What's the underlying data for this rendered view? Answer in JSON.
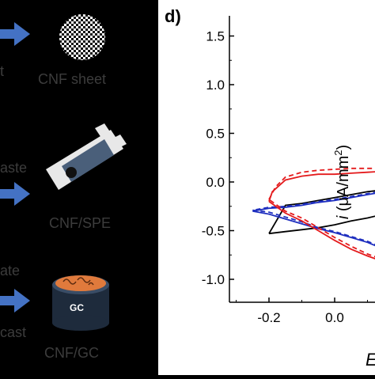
{
  "left_panel": {
    "row1": {
      "left_text": "t",
      "caption": "CNF sheet"
    },
    "row2": {
      "left_text": "aste",
      "caption": "CNF/SPE"
    },
    "row3": {
      "left_text_top": "ate",
      "left_text_bottom": "cast",
      "caption": "CNF/GC",
      "gc_label": "GC"
    },
    "colors": {
      "arrow": "#4472c4",
      "caption": "#3c3c3c",
      "electrode_body": "#4a5f7a",
      "gc_top": "#e07a3c"
    }
  },
  "chart_data": {
    "type": "line",
    "panel_label": "d)",
    "xlabel": "E",
    "ylabel": "i (μA/mm²)",
    "ylabel_parts": {
      "italic": "i",
      "open": "(",
      "mu": "μ",
      "unit": "A/mm",
      "sup": "2",
      "close": ")"
    },
    "xlim": [
      -0.3,
      0.3
    ],
    "ylim": [
      -1.2,
      1.8
    ],
    "x_ticks": [
      -0.2,
      0.0
    ],
    "x_tick_labels": [
      "-0.2",
      "0.0"
    ],
    "y_ticks": [
      -1.0,
      -0.5,
      0.0,
      0.5,
      1.0,
      1.5
    ],
    "y_tick_labels": [
      "-1.0",
      "-0.5",
      "0.0",
      "0.5",
      "1.0",
      "1.5"
    ],
    "series": [
      {
        "color": "#000000",
        "dash": "solid",
        "x": [
          -0.2,
          -0.15,
          -0.1,
          -0.05,
          0.0,
          0.05,
          0.1,
          0.15,
          0.2,
          0.22,
          0.3,
          0.22,
          0.2,
          0.15,
          0.1,
          0.05,
          0.0,
          -0.05,
          -0.1,
          -0.15,
          -0.2
        ],
        "y": [
          -0.53,
          -0.51,
          -0.49,
          -0.47,
          -0.44,
          -0.4,
          -0.37,
          -0.33,
          -0.27,
          -0.25,
          -0.23,
          -0.04,
          -0.05,
          -0.08,
          -0.1,
          -0.13,
          -0.16,
          -0.19,
          -0.22,
          -0.24,
          -0.53
        ]
      },
      {
        "color": "#1f2fbf",
        "dash": "solid",
        "x": [
          -0.25,
          -0.2,
          -0.15,
          -0.1,
          -0.05,
          0.0,
          0.05,
          0.1,
          0.15,
          0.2,
          0.25,
          0.3,
          0.25,
          0.2,
          0.15,
          0.1,
          0.05,
          0.0,
          -0.05,
          -0.1,
          -0.15,
          -0.2,
          -0.25
        ],
        "y": [
          -0.3,
          -0.33,
          -0.38,
          -0.43,
          -0.48,
          -0.52,
          -0.57,
          -0.62,
          -0.69,
          -0.78,
          -0.83,
          -0.87,
          -0.02,
          -0.06,
          -0.1,
          -0.13,
          -0.16,
          -0.19,
          -0.21,
          -0.24,
          -0.26,
          -0.27,
          -0.3
        ]
      },
      {
        "color": "#1f2fbf",
        "dash": "dashed",
        "x": [
          -0.25,
          -0.2,
          -0.15,
          -0.1,
          -0.05,
          0.0,
          0.05,
          0.1,
          0.15,
          0.2,
          0.25,
          0.3,
          0.25,
          0.2,
          0.15,
          0.1,
          0.05,
          0.0,
          -0.05,
          -0.1,
          -0.15,
          -0.2,
          -0.25
        ],
        "y": [
          -0.29,
          -0.31,
          -0.36,
          -0.41,
          -0.47,
          -0.51,
          -0.56,
          -0.61,
          -0.68,
          -0.76,
          -0.84,
          -0.88,
          -0.01,
          -0.05,
          -0.09,
          -0.12,
          -0.15,
          -0.18,
          -0.2,
          -0.23,
          -0.25,
          -0.26,
          -0.29
        ]
      },
      {
        "color": "#e41a1c",
        "dash": "solid",
        "x": [
          -0.2,
          -0.19,
          -0.15,
          -0.1,
          -0.05,
          0.0,
          0.05,
          0.1,
          0.15,
          0.2,
          0.3,
          0.2,
          0.15,
          0.1,
          0.05,
          0.0,
          -0.05,
          -0.1,
          -0.15,
          -0.2
        ],
        "y": [
          -0.2,
          -0.1,
          0.02,
          0.06,
          0.08,
          0.08,
          0.09,
          0.1,
          0.11,
          0.12,
          0.1,
          -0.88,
          -0.82,
          -0.76,
          -0.69,
          -0.6,
          -0.5,
          -0.4,
          -0.32,
          -0.2
        ]
      },
      {
        "color": "#e41a1c",
        "dash": "dashed",
        "x": [
          -0.2,
          -0.18,
          -0.15,
          -0.1,
          -0.05,
          0.0,
          0.05,
          0.1,
          0.15,
          0.2,
          0.3,
          0.2,
          0.15,
          0.1,
          0.05,
          0.0,
          -0.05,
          -0.1,
          -0.15,
          -0.2
        ],
        "y": [
          -0.18,
          -0.05,
          0.05,
          0.1,
          0.12,
          0.13,
          0.14,
          0.14,
          0.14,
          0.14,
          0.12,
          -0.86,
          -0.8,
          -0.74,
          -0.66,
          -0.57,
          -0.47,
          -0.37,
          -0.3,
          -0.18
        ]
      }
    ]
  }
}
